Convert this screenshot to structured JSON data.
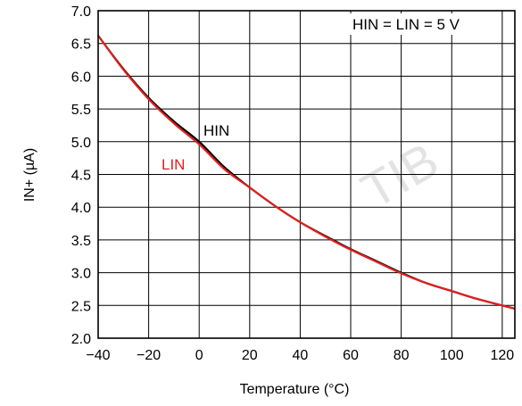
{
  "chart_data": {
    "type": "line",
    "title": "",
    "xlabel": "Temperature (°C)",
    "ylabel": "IN+ (µA)",
    "xlim": [
      -40,
      125
    ],
    "ylim": [
      2.0,
      7.0
    ],
    "x_ticks": [
      -40,
      -20,
      0,
      20,
      40,
      60,
      80,
      100,
      120
    ],
    "y_ticks": [
      2.0,
      2.5,
      3.0,
      3.5,
      4.0,
      4.5,
      5.0,
      5.5,
      6.0,
      6.5,
      7.0
    ],
    "grid": true,
    "annotation": "HIN = LIN = 5 V",
    "series": [
      {
        "name": "HIN",
        "color": "#000000",
        "x": [
          -40,
          -30,
          -20,
          -10,
          0,
          10,
          20,
          30,
          40,
          50,
          60,
          70,
          80,
          90,
          100,
          110,
          120,
          125
        ],
        "y": [
          6.62,
          6.11,
          5.67,
          5.31,
          5.0,
          4.61,
          4.3,
          4.02,
          3.77,
          3.56,
          3.36,
          3.18,
          3.0,
          2.84,
          2.72,
          2.6,
          2.5,
          2.45
        ]
      },
      {
        "name": "LIN",
        "color": "#e02020",
        "x": [
          -40,
          -30,
          -20,
          -10,
          0,
          10,
          20,
          30,
          40,
          50,
          60,
          70,
          80,
          90,
          100,
          110,
          120,
          125
        ],
        "y": [
          6.62,
          6.1,
          5.65,
          5.28,
          4.96,
          4.58,
          4.3,
          4.02,
          3.77,
          3.55,
          3.35,
          3.17,
          2.99,
          2.84,
          2.72,
          2.6,
          2.5,
          2.45
        ]
      }
    ]
  }
}
